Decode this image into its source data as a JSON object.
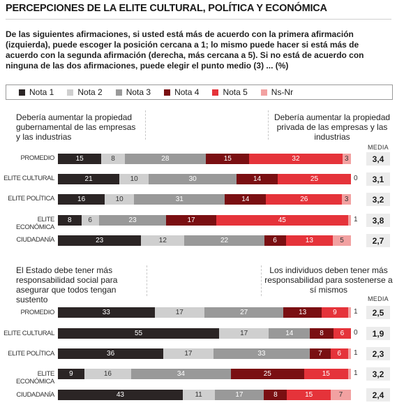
{
  "title": "PERCEPCIONES DE LA ELITE CULTURAL, POLÍTICA Y ECONÓMICA",
  "intro": "De las siguientes afirmaciones, si usted está más de acuerdo con la primera afirmación (izquierda), puede escoger la posición cercana a 1; lo mismo puede hacer si está más de acuerdo con la segunda afirmación (derecha, más cercana a 5). Si no está de acuerdo con ninguna de las dos afirmaciones, puede elegir el punto medio (3) ... (%)",
  "colors": {
    "nota1": "#2b2525",
    "nota2": "#cfcfcf",
    "nota3": "#999999",
    "nota4": "#7a0f12",
    "nota5": "#e5333a",
    "nsnr": "#f2a1a1"
  },
  "chart_data": [
    {
      "type": "bar",
      "stacked": true,
      "orientation": "horizontal",
      "legend": [
        "Nota 1",
        "Nota 2",
        "Nota 3",
        "Nota 4",
        "Nota 5",
        "Ns-Nr"
      ],
      "statement_left": "Debería aumentar la propiedad gubernamental de las empresas y las industrias",
      "statement_right": "Debería aumentar la propiedad privada de las empresas y las industrias",
      "media_label": "MEDIA",
      "rows": [
        {
          "label": "PROMEDIO",
          "values": [
            15,
            8,
            28,
            15,
            32,
            3
          ],
          "labels": [
            "15",
            "8",
            "28",
            "15",
            "32",
            "3"
          ],
          "media": "3,4"
        },
        {
          "label": "ELITE CULTURAL",
          "values": [
            21,
            10,
            30,
            14,
            25,
            0
          ],
          "labels": [
            "21",
            "10",
            "30",
            "14",
            "25",
            "0"
          ],
          "media": "3,1"
        },
        {
          "label": "ELITE POLÍTICA",
          "values": [
            16,
            10,
            31,
            14,
            26,
            3
          ],
          "labels": [
            "16",
            "10",
            "31",
            "14",
            "26",
            "3"
          ],
          "media": "3,2"
        },
        {
          "label": "ELITE ECONÓMICA",
          "values": [
            8,
            6,
            23,
            17,
            45,
            1
          ],
          "labels": [
            "8",
            "6",
            "23",
            "17",
            "45",
            "1"
          ],
          "media": "3,8"
        },
        {
          "label": "CIUDADANÍA",
          "values": [
            23,
            12,
            22,
            6,
            13,
            5
          ],
          "labels": [
            "23",
            "12",
            "22",
            "6",
            "13",
            "5"
          ],
          "media": "2,7"
        }
      ]
    },
    {
      "type": "bar",
      "stacked": true,
      "orientation": "horizontal",
      "legend": [
        "Nota 1",
        "Nota 2",
        "Nota 3",
        "Nota 4",
        "Nota 5",
        "Ns-Nr"
      ],
      "statement_left": "El Estado debe tener más responsabilidad social para asegurar que todos tengan sustento",
      "statement_right": "Los individuos deben tener más responsabilidad para sostenerse a sí mismos",
      "media_label": "MEDIA",
      "rows": [
        {
          "label": "PROMEDIO",
          "values": [
            33,
            17,
            27,
            13,
            9,
            1
          ],
          "labels": [
            "33",
            "17",
            "27",
            "13",
            "9",
            "1"
          ],
          "media": "2,5"
        },
        {
          "label": "ELITE CULTURAL",
          "values": [
            55,
            17,
            14,
            8,
            6,
            0
          ],
          "labels": [
            "55",
            "17",
            "14",
            "8",
            "6",
            "0"
          ],
          "media": "1,9"
        },
        {
          "label": "ELITE POLÍTICA",
          "values": [
            36,
            17,
            33,
            7,
            6,
            1
          ],
          "labels": [
            "36",
            "17",
            "33",
            "7",
            "6",
            "1"
          ],
          "media": "2,3"
        },
        {
          "label": "ELITE ECONÓMICA",
          "values": [
            9,
            16,
            34,
            25,
            15,
            1
          ],
          "labels": [
            "9",
            "16",
            "34",
            "25",
            "15",
            "1"
          ],
          "media": "3,2"
        },
        {
          "label": "CIUDADANÍA",
          "values": [
            43,
            11,
            17,
            8,
            15,
            7
          ],
          "labels": [
            "43",
            "11",
            "17",
            "8",
            "15",
            "7"
          ],
          "media": "2,4"
        }
      ]
    }
  ]
}
